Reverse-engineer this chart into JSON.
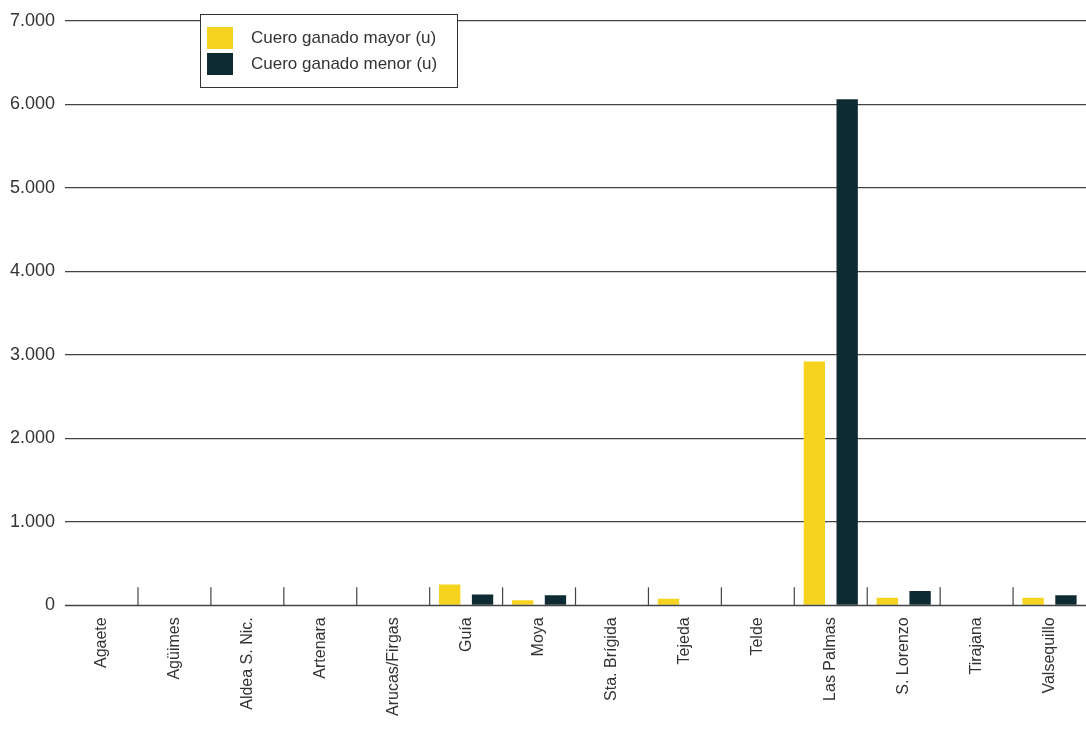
{
  "chart_data": {
    "type": "bar",
    "categories": [
      "Agaete",
      "Agüimes",
      "Aldea S. Nic.",
      "Artenara",
      "Arucas/Firgas",
      "Guía",
      "Moya",
      "Sta. Brígida",
      "Tejeda",
      "Telde",
      "Las Palmas",
      "S. Lorenzo",
      "Tirajana",
      "Valsequillo"
    ],
    "series": [
      {
        "name": "Cuero ganado mayor (u)",
        "color": "#f5d31f",
        "values": [
          0,
          0,
          0,
          0,
          0,
          250,
          60,
          0,
          80,
          0,
          2920,
          90,
          0,
          90
        ]
      },
      {
        "name": "Cuero ganado menor (u)",
        "color": "#0e2a33",
        "values": [
          0,
          0,
          0,
          0,
          0,
          130,
          120,
          0,
          0,
          0,
          6060,
          170,
          0,
          120
        ]
      }
    ],
    "ylim": [
      0,
      7000
    ],
    "yticks": [
      {
        "value": 0,
        "label": "0"
      },
      {
        "value": 1000,
        "label": "1.000"
      },
      {
        "value": 2000,
        "label": "2.000"
      },
      {
        "value": 3000,
        "label": "3.000"
      },
      {
        "value": 4000,
        "label": "4.000"
      },
      {
        "value": 5000,
        "label": "5.000"
      },
      {
        "value": 6000,
        "label": "6.000"
      },
      {
        "value": 7000,
        "label": "7.000"
      }
    ],
    "grid": "y",
    "legend": "top left"
  }
}
